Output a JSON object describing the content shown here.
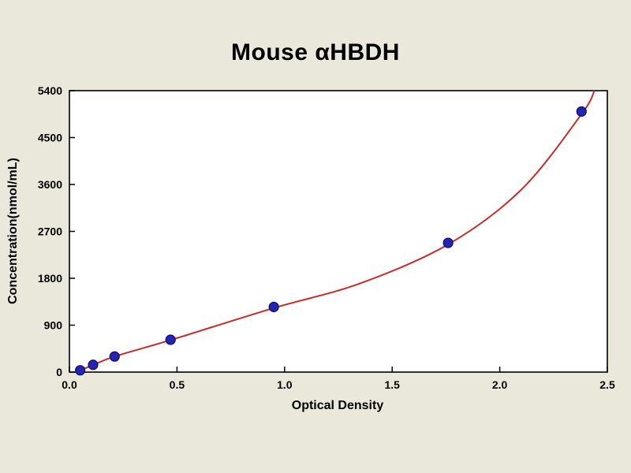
{
  "page": {
    "background": "#E9E8DB"
  },
  "chart_data": {
    "type": "scatter",
    "title": "Mouse αHBDH",
    "xlabel": "Optical Density",
    "ylabel": "Concentration(nmol/mL)",
    "xlim": [
      0,
      2.5
    ],
    "ylim": [
      0,
      5400
    ],
    "x_ticks": [
      0,
      0.5,
      1.0,
      1.5,
      2.0,
      2.5
    ],
    "x_tick_labels": [
      "0.0",
      "0.5",
      "1.0",
      "1.5",
      "2.0",
      "2.5"
    ],
    "y_ticks": [
      0,
      900,
      1800,
      2700,
      3600,
      4500,
      5400
    ],
    "y_tick_labels": [
      "0",
      "900",
      "1800",
      "2700",
      "3600",
      "4500",
      "5400"
    ],
    "grid": false,
    "legend": "none",
    "colors": {
      "background": "#E9E8DB",
      "plot_background": "#FFFFFF",
      "frame": "#000000",
      "curve": "#C92A2A",
      "point_fill": "#2424B0",
      "point_stroke": "#0C0C6E",
      "text": "#000000"
    },
    "series": [
      {
        "name": "standard-curve-fit",
        "type": "line",
        "color": "#C92A2A",
        "x": [
          0.03,
          0.05,
          0.11,
          0.21,
          0.47,
          0.95,
          1.35,
          1.76,
          2.1,
          2.38,
          2.44
        ],
        "y": [
          0,
          35,
          135,
          300,
          615,
          1230,
          1700,
          2450,
          3500,
          4950,
          5400
        ]
      },
      {
        "name": "standard-points",
        "type": "scatter",
        "color": "#2424B0",
        "x": [
          0.05,
          0.11,
          0.21,
          0.47,
          0.95,
          1.76,
          2.38
        ],
        "y": [
          35,
          140,
          300,
          620,
          1250,
          2480,
          5000
        ]
      }
    ]
  }
}
